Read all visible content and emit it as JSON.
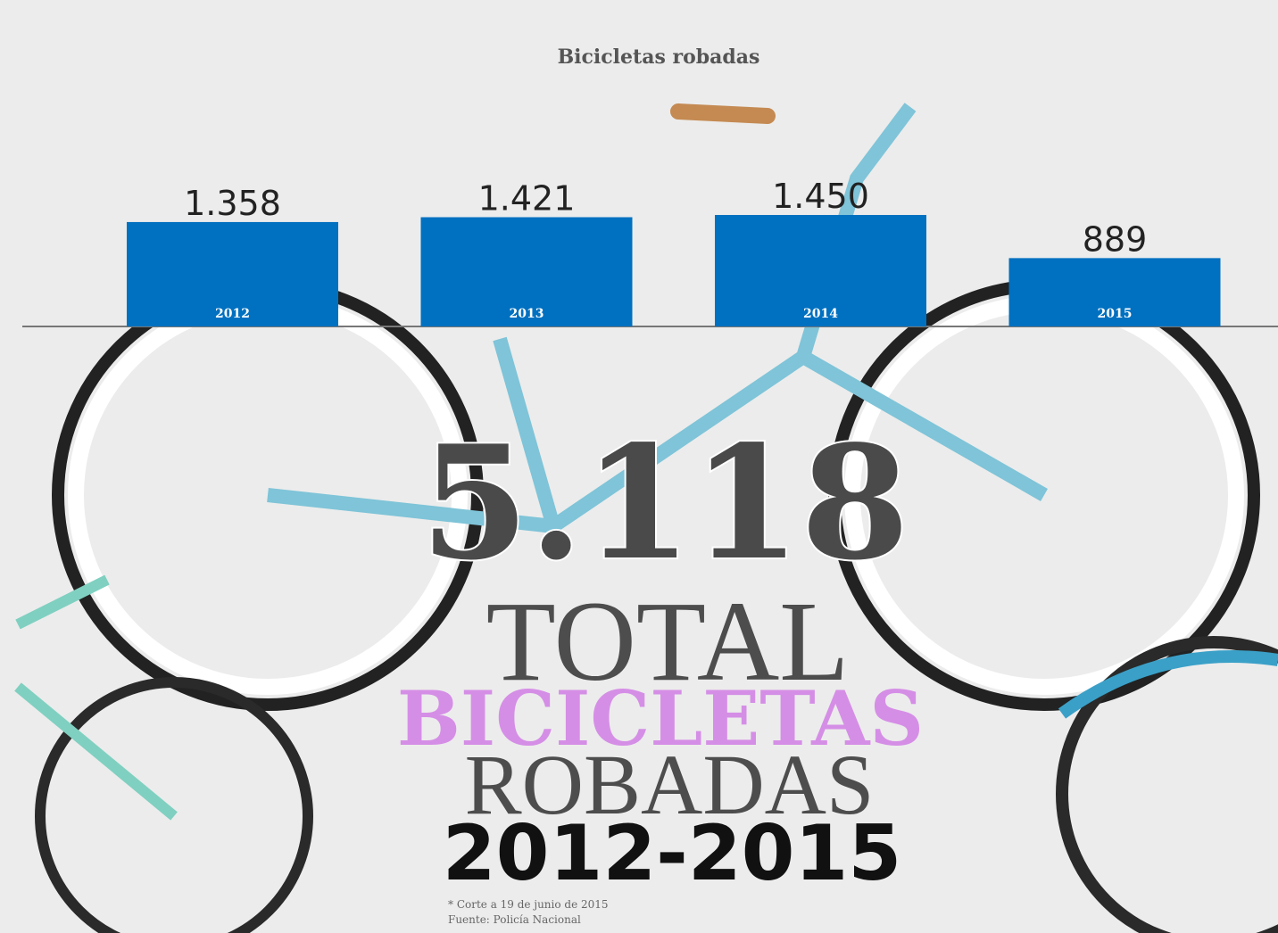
{
  "chart_data": {
    "type": "bar",
    "title": "Bicicletas robadas",
    "categories": [
      "2012",
      "2013",
      "2014",
      "2015"
    ],
    "values": [
      1358,
      1421,
      1450,
      889
    ],
    "value_labels": [
      "1.358",
      "1.421",
      "1.450",
      "889"
    ],
    "color": "#0070c0",
    "annotations": [
      "5.118",
      "TOTAL",
      "BICICLETAS",
      "ROBADAS",
      "2012-2015",
      "* Corte a 19 de junio de 2015",
      "Fuente: Policía Nacional"
    ]
  }
}
